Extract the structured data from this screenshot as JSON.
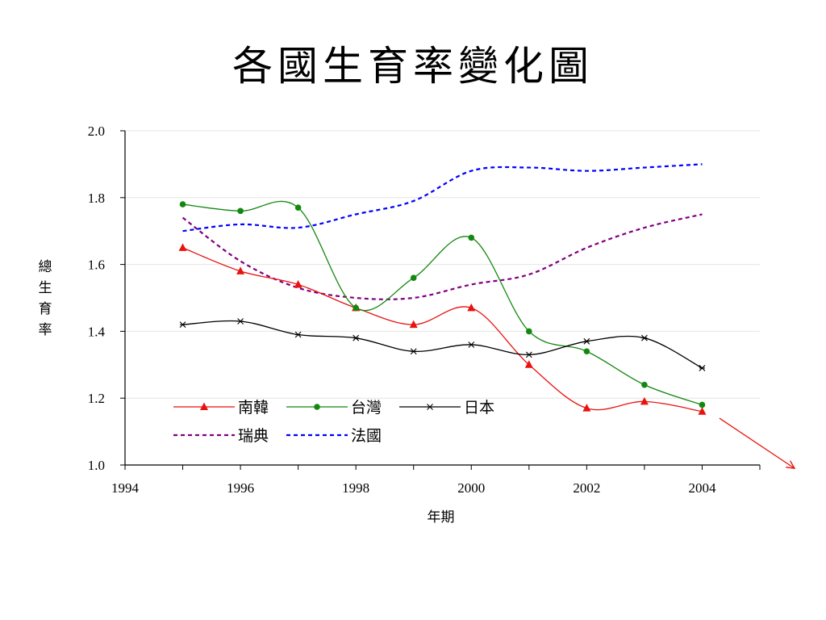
{
  "page": {
    "title": "各國生育率變化圖"
  },
  "chart_data": {
    "type": "line",
    "title": "各國生育率變化圖",
    "xlabel": "年期",
    "ylabel": "總生育率",
    "xlim": [
      1994,
      2005
    ],
    "ylim": [
      1.0,
      2.0
    ],
    "x_ticks": [
      1994,
      1996,
      1998,
      2000,
      2002,
      2004
    ],
    "y_ticks": [
      1.0,
      1.2,
      1.4,
      1.6,
      1.8,
      2.0
    ],
    "y_tick_labels": [
      "1.0",
      "1.2",
      "1.4",
      "1.6",
      "1.8",
      "2.0"
    ],
    "grid": "horizontal",
    "legend_position": "bottom-left inside plot",
    "x": [
      1995,
      1996,
      1997,
      1998,
      1999,
      2000,
      2001,
      2002,
      2003,
      2004
    ],
    "series": [
      {
        "name": "南韓",
        "color": "#e8120f",
        "marker": "triangle",
        "dash": "solid",
        "values": [
          1.65,
          1.58,
          1.54,
          1.47,
          1.42,
          1.47,
          1.3,
          1.17,
          1.19,
          1.16
        ]
      },
      {
        "name": "台灣",
        "color": "#13880f",
        "marker": "circle",
        "dash": "solid",
        "values": [
          1.78,
          1.76,
          1.77,
          1.47,
          1.56,
          1.68,
          1.4,
          1.34,
          1.24,
          1.18
        ]
      },
      {
        "name": "日本",
        "color": "#000000",
        "marker": "asterisk",
        "dash": "solid",
        "values": [
          1.42,
          1.43,
          1.39,
          1.38,
          1.34,
          1.36,
          1.33,
          1.37,
          1.38,
          1.29
        ]
      },
      {
        "name": "瑞典",
        "color": "#800080",
        "marker": "none",
        "dash": "dashed",
        "values": [
          1.74,
          1.61,
          1.53,
          1.5,
          1.5,
          1.54,
          1.57,
          1.65,
          1.71,
          1.75
        ]
      },
      {
        "name": "法國",
        "color": "#0000ff",
        "marker": "none",
        "dash": "dashed",
        "values": [
          1.7,
          1.72,
          1.71,
          1.75,
          1.79,
          1.88,
          1.89,
          1.88,
          1.89,
          1.9
        ]
      }
    ],
    "annotations": [
      {
        "type": "arrow",
        "color": "#e8120f",
        "description": "downward trend arrow continuing the 南韓 line",
        "from": [
          2004.3,
          1.14
        ],
        "to": [
          2005.6,
          0.99
        ]
      }
    ]
  }
}
